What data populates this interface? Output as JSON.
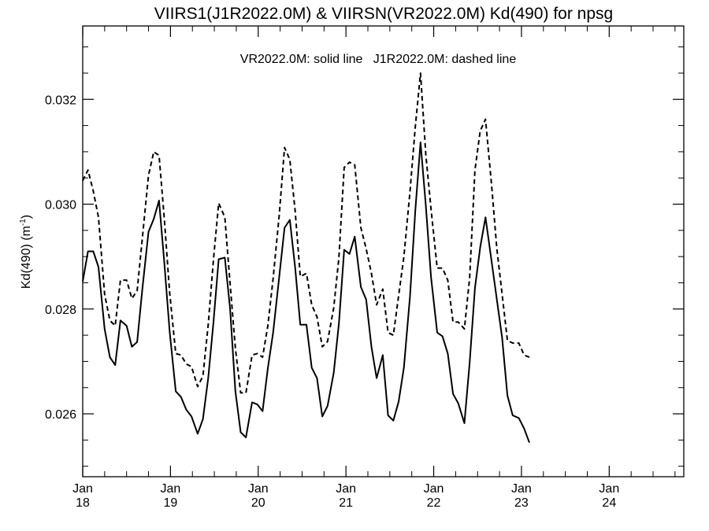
{
  "chart_data": {
    "type": "line",
    "title": "VIIRS1(J1R2022.0M) & VIIRSN(VR2022.0M)  Kd(490) for npsg",
    "annotation": "VR2022.0M: solid line   J1R2022.0M: dashed line",
    "ylabel": "Kd(490) (m",
    "ylabel_sup": "-1",
    "ylabel_close": ")",
    "ylim": [
      0.0248,
      0.0334
    ],
    "xlim": [
      2018.0,
      2024.85
    ],
    "yticks": [
      {
        "value": 0.026,
        "label": "0.026"
      },
      {
        "value": 0.028,
        "label": "0.028"
      },
      {
        "value": 0.03,
        "label": "0.030"
      },
      {
        "value": 0.032,
        "label": "0.032"
      }
    ],
    "xticks": [
      {
        "value": 2018,
        "month": "Jan",
        "year": "18"
      },
      {
        "value": 2019,
        "month": "Jan",
        "year": "19"
      },
      {
        "value": 2020,
        "month": "Jan",
        "year": "20"
      },
      {
        "value": 2021,
        "month": "Jan",
        "year": "21"
      },
      {
        "value": 2022,
        "month": "Jan",
        "year": "22"
      },
      {
        "value": 2023,
        "month": "Jan",
        "year": "23"
      },
      {
        "value": 2024,
        "month": "Jan",
        "year": "24"
      }
    ],
    "grid": false,
    "series": [
      {
        "name": "VR2022.0M",
        "style": "solid",
        "color": "#000000",
        "points": [
          [
            2018.0,
            0.02852
          ],
          [
            2018.06,
            0.0291
          ],
          [
            2018.12,
            0.0291
          ],
          [
            2018.18,
            0.0288
          ],
          [
            2018.25,
            0.02762
          ],
          [
            2018.31,
            0.02708
          ],
          [
            2018.37,
            0.02693
          ],
          [
            2018.43,
            0.02778
          ],
          [
            2018.5,
            0.02768
          ],
          [
            2018.56,
            0.02728
          ],
          [
            2018.62,
            0.02737
          ],
          [
            2018.68,
            0.02838
          ],
          [
            2018.75,
            0.02947
          ],
          [
            2018.81,
            0.02972
          ],
          [
            2018.87,
            0.03007
          ],
          [
            2018.93,
            0.02888
          ],
          [
            2018.99,
            0.02758
          ],
          [
            2019.06,
            0.02643
          ],
          [
            2019.12,
            0.02632
          ],
          [
            2019.18,
            0.02608
          ],
          [
            2019.24,
            0.02595
          ],
          [
            2019.31,
            0.02562
          ],
          [
            2019.37,
            0.0259
          ],
          [
            2019.43,
            0.02668
          ],
          [
            2019.49,
            0.02775
          ],
          [
            2019.55,
            0.02895
          ],
          [
            2019.62,
            0.02898
          ],
          [
            2019.68,
            0.028
          ],
          [
            2019.74,
            0.02643
          ],
          [
            2019.8,
            0.02565
          ],
          [
            2019.86,
            0.02555
          ],
          [
            2019.93,
            0.02622
          ],
          [
            2019.99,
            0.02618
          ],
          [
            2020.05,
            0.02605
          ],
          [
            2020.11,
            0.02687
          ],
          [
            2020.17,
            0.02755
          ],
          [
            2020.24,
            0.02862
          ],
          [
            2020.3,
            0.02955
          ],
          [
            2020.36,
            0.0297
          ],
          [
            2020.42,
            0.0288
          ],
          [
            2020.48,
            0.0277
          ],
          [
            2020.55,
            0.0277
          ],
          [
            2020.61,
            0.02688
          ],
          [
            2020.67,
            0.02668
          ],
          [
            2020.73,
            0.02595
          ],
          [
            2020.79,
            0.02615
          ],
          [
            2020.86,
            0.02678
          ],
          [
            2020.92,
            0.02772
          ],
          [
            2020.98,
            0.02913
          ],
          [
            2021.04,
            0.02905
          ],
          [
            2021.1,
            0.02938
          ],
          [
            2021.17,
            0.02842
          ],
          [
            2021.23,
            0.02818
          ],
          [
            2021.29,
            0.02728
          ],
          [
            2021.35,
            0.02668
          ],
          [
            2021.42,
            0.02712
          ],
          [
            2021.48,
            0.02597
          ],
          [
            2021.54,
            0.02587
          ],
          [
            2021.6,
            0.02623
          ],
          [
            2021.66,
            0.02688
          ],
          [
            2021.73,
            0.02825
          ],
          [
            2021.79,
            0.02988
          ],
          [
            2021.85,
            0.03118
          ],
          [
            2021.91,
            0.02998
          ],
          [
            2021.97,
            0.0286
          ],
          [
            2022.04,
            0.02755
          ],
          [
            2022.1,
            0.02748
          ],
          [
            2022.16,
            0.02715
          ],
          [
            2022.22,
            0.02638
          ],
          [
            2022.28,
            0.0262
          ],
          [
            2022.35,
            0.02582
          ],
          [
            2022.41,
            0.02698
          ],
          [
            2022.47,
            0.0284
          ],
          [
            2022.53,
            0.02918
          ],
          [
            2022.59,
            0.02975
          ],
          [
            2022.66,
            0.0289
          ],
          [
            2022.72,
            0.02818
          ],
          [
            2022.78,
            0.02745
          ],
          [
            2022.84,
            0.02635
          ],
          [
            2022.9,
            0.02597
          ],
          [
            2022.97,
            0.02592
          ],
          [
            2023.03,
            0.02572
          ],
          [
            2023.09,
            0.02545
          ]
        ]
      },
      {
        "name": "J1R2022.0M",
        "style": "dashed",
        "color": "#000000",
        "points": [
          [
            2018.0,
            0.03045
          ],
          [
            2018.06,
            0.03065
          ],
          [
            2018.12,
            0.03025
          ],
          [
            2018.18,
            0.02975
          ],
          [
            2018.25,
            0.02828
          ],
          [
            2018.31,
            0.02778
          ],
          [
            2018.37,
            0.02768
          ],
          [
            2018.43,
            0.02855
          ],
          [
            2018.5,
            0.02855
          ],
          [
            2018.56,
            0.0282
          ],
          [
            2018.62,
            0.02835
          ],
          [
            2018.68,
            0.02935
          ],
          [
            2018.75,
            0.03055
          ],
          [
            2018.81,
            0.031
          ],
          [
            2018.87,
            0.03093
          ],
          [
            2018.93,
            0.02972
          ],
          [
            2018.99,
            0.02832
          ],
          [
            2019.06,
            0.02715
          ],
          [
            2019.12,
            0.02712
          ],
          [
            2019.18,
            0.02695
          ],
          [
            2019.24,
            0.0269
          ],
          [
            2019.31,
            0.02652
          ],
          [
            2019.37,
            0.02672
          ],
          [
            2019.43,
            0.0277
          ],
          [
            2019.49,
            0.02895
          ],
          [
            2019.55,
            0.03002
          ],
          [
            2019.62,
            0.02975
          ],
          [
            2019.68,
            0.02848
          ],
          [
            2019.74,
            0.02725
          ],
          [
            2019.8,
            0.0264
          ],
          [
            2019.86,
            0.0264
          ],
          [
            2019.93,
            0.02712
          ],
          [
            2019.99,
            0.02715
          ],
          [
            2020.05,
            0.02708
          ],
          [
            2020.11,
            0.02768
          ],
          [
            2020.17,
            0.02858
          ],
          [
            2020.24,
            0.0298
          ],
          [
            2020.3,
            0.03108
          ],
          [
            2020.36,
            0.03085
          ],
          [
            2020.42,
            0.02988
          ],
          [
            2020.48,
            0.02862
          ],
          [
            2020.55,
            0.02868
          ],
          [
            2020.61,
            0.02808
          ],
          [
            2020.67,
            0.02785
          ],
          [
            2020.73,
            0.02728
          ],
          [
            2020.79,
            0.02738
          ],
          [
            2020.86,
            0.02802
          ],
          [
            2020.92,
            0.02898
          ],
          [
            2020.98,
            0.0307
          ],
          [
            2021.04,
            0.0308
          ],
          [
            2021.1,
            0.03075
          ],
          [
            2021.17,
            0.02955
          ],
          [
            2021.23,
            0.02915
          ],
          [
            2021.29,
            0.02868
          ],
          [
            2021.35,
            0.02808
          ],
          [
            2021.42,
            0.02838
          ],
          [
            2021.48,
            0.02755
          ],
          [
            2021.54,
            0.0275
          ],
          [
            2021.6,
            0.02825
          ],
          [
            2021.66,
            0.029
          ],
          [
            2021.73,
            0.03025
          ],
          [
            2021.79,
            0.03148
          ],
          [
            2021.85,
            0.0325
          ],
          [
            2021.91,
            0.03095
          ],
          [
            2021.97,
            0.0299
          ],
          [
            2022.04,
            0.02878
          ],
          [
            2022.1,
            0.02878
          ],
          [
            2022.16,
            0.02855
          ],
          [
            2022.22,
            0.02775
          ],
          [
            2022.28,
            0.02775
          ],
          [
            2022.35,
            0.02762
          ],
          [
            2022.41,
            0.0286
          ],
          [
            2022.47,
            0.03065
          ],
          [
            2022.53,
            0.0314
          ],
          [
            2022.59,
            0.03162
          ],
          [
            2022.66,
            0.03035
          ],
          [
            2022.72,
            0.02915
          ],
          [
            2022.78,
            0.02828
          ],
          [
            2022.84,
            0.0274
          ],
          [
            2022.9,
            0.02735
          ],
          [
            2022.97,
            0.02735
          ],
          [
            2023.03,
            0.02712
          ],
          [
            2023.09,
            0.02708
          ]
        ]
      }
    ]
  }
}
